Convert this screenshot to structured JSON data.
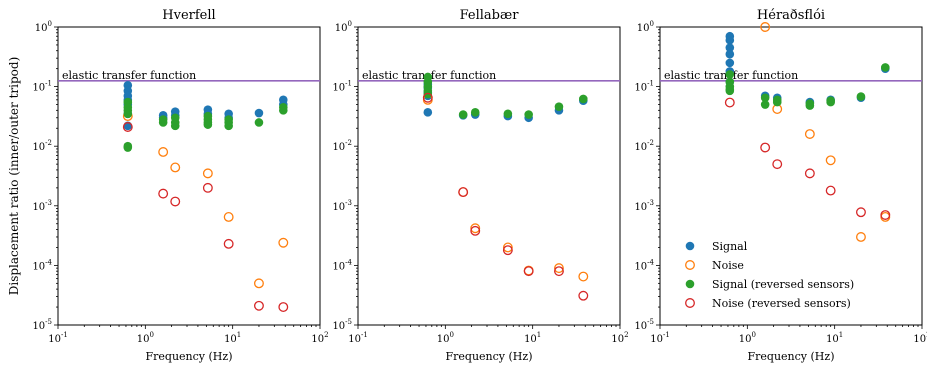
{
  "figure": {
    "ylabel": "Displacement ratio (inner/outer tripod)",
    "xlabel": "Frequency (Hz)"
  },
  "colors": {
    "signal": "#1f77b4",
    "noise": "#ff7f0e",
    "signal_reversed": "#2ca02c",
    "noise_reversed": "#d62728",
    "transfer_line": "#9467bd"
  },
  "chart_data": [
    {
      "type": "scatter",
      "title": "Hverfell",
      "xlabel": "Frequency (Hz)",
      "ylabel": "Displacement ratio (inner/outer tripod)",
      "xscale": "log",
      "yscale": "log",
      "xlim": [
        0.1,
        100
      ],
      "ylim": [
        1e-05,
        1
      ],
      "x_ticks": [
        "10^-1",
        "10^0",
        "10^1",
        "10^2"
      ],
      "y_ticks": [
        "10^-5",
        "10^-4",
        "10^-3",
        "10^-2",
        "10^-1",
        "10^0"
      ],
      "grid": false,
      "line": {
        "label": "elastic transfer function",
        "y": 0.125,
        "x": [
          0.1,
          100
        ]
      },
      "series": [
        {
          "name": "Signal",
          "marker": "filled",
          "x": [
            0.63,
            0.63,
            0.63,
            0.63,
            0.63,
            0.63,
            0.63,
            1.6,
            1.6,
            2.2,
            2.2,
            5.2,
            5.2,
            9.0,
            9.0,
            20,
            38,
            38
          ],
          "y": [
            0.105,
            0.085,
            0.07,
            0.06,
            0.05,
            0.035,
            0.022,
            0.033,
            0.03,
            0.038,
            0.033,
            0.041,
            0.035,
            0.035,
            0.03,
            0.036,
            0.06,
            0.05
          ]
        },
        {
          "name": "Noise",
          "marker": "open",
          "x": [
            0.63,
            1.6,
            2.2,
            5.2,
            9.0,
            20,
            38
          ],
          "y": [
            0.032,
            0.008,
            0.0044,
            0.0035,
            0.00065,
            5e-05,
            0.00024
          ]
        },
        {
          "name": "Signal (reversed sensors)",
          "marker": "filled",
          "x": [
            0.63,
            0.63,
            0.63,
            0.63,
            0.63,
            0.63,
            1.6,
            1.6,
            2.2,
            2.2,
            2.2,
            5.2,
            5.2,
            5.2,
            5.2,
            9.0,
            9.0,
            9.0,
            20,
            38,
            38
          ],
          "y": [
            0.055,
            0.045,
            0.04,
            0.035,
            0.01,
            0.0095,
            0.028,
            0.025,
            0.03,
            0.025,
            0.022,
            0.032,
            0.028,
            0.025,
            0.023,
            0.028,
            0.025,
            0.022,
            0.025,
            0.045,
            0.04
          ]
        },
        {
          "name": "Noise (reversed sensors)",
          "marker": "open",
          "x": [
            0.63,
            1.6,
            2.2,
            5.2,
            9.0,
            20,
            38
          ],
          "y": [
            0.021,
            0.0016,
            0.00118,
            0.002,
            0.00023,
            2.1e-05,
            2e-05
          ]
        }
      ]
    },
    {
      "type": "scatter",
      "title": "Fellabær",
      "xlabel": "Frequency (Hz)",
      "xscale": "log",
      "yscale": "log",
      "xlim": [
        0.1,
        100
      ],
      "ylim": [
        1e-05,
        1
      ],
      "x_ticks": [
        "10^-1",
        "10^0",
        "10^1",
        "10^2"
      ],
      "y_ticks": [
        "10^-5",
        "10^-4",
        "10^-3",
        "10^-2",
        "10^-1",
        "10^0"
      ],
      "grid": false,
      "line": {
        "label": "elastic transfer function",
        "y": 0.125,
        "x": [
          0.1,
          100
        ]
      },
      "series": [
        {
          "name": "Signal",
          "marker": "filled",
          "x": [
            0.63,
            0.63,
            0.63,
            0.63,
            0.63,
            1.6,
            2.2,
            5.2,
            9.0,
            20,
            38
          ],
          "y": [
            0.11,
            0.095,
            0.08,
            0.07,
            0.037,
            0.033,
            0.034,
            0.032,
            0.03,
            0.04,
            0.058
          ]
        },
        {
          "name": "Noise",
          "marker": "open",
          "x": [
            0.63,
            1.6,
            2.2,
            5.2,
            9.0,
            20,
            38
          ],
          "y": [
            0.06,
            0.0017,
            0.00042,
            0.0002,
            8.2e-05,
            9e-05,
            6.5e-05
          ]
        },
        {
          "name": "Signal (reversed sensors)",
          "marker": "filled",
          "x": [
            0.63,
            0.63,
            0.63,
            0.63,
            0.63,
            1.6,
            2.2,
            5.2,
            9.0,
            20,
            38
          ],
          "y": [
            0.145,
            0.12,
            0.1,
            0.085,
            0.075,
            0.034,
            0.037,
            0.035,
            0.034,
            0.046,
            0.062
          ]
        },
        {
          "name": "Noise (reversed sensors)",
          "marker": "open",
          "x": [
            0.63,
            1.6,
            2.2,
            5.2,
            9.0,
            20,
            38
          ],
          "y": [
            0.065,
            0.0017,
            0.00038,
            0.00018,
            8e-05,
            8e-05,
            3.1e-05
          ]
        }
      ]
    },
    {
      "type": "scatter",
      "title": "Héraðsflói",
      "xlabel": "Frequency (Hz)",
      "xscale": "log",
      "yscale": "log",
      "xlim": [
        0.1,
        100
      ],
      "ylim": [
        1e-05,
        1
      ],
      "x_ticks": [
        "10^-1",
        "10^0",
        "10^1",
        "10^2"
      ],
      "y_ticks": [
        "10^-5",
        "10^-4",
        "10^-3",
        "10^-2",
        "10^-1",
        "10^0"
      ],
      "grid": false,
      "line": {
        "label": "elastic transfer function",
        "y": 0.125,
        "x": [
          0.1,
          100
        ]
      },
      "legend": {
        "location": "lower-left",
        "entries": [
          "Signal",
          "Noise",
          "Signal (reversed sensors)",
          "Noise (reversed sensors)"
        ]
      },
      "series": [
        {
          "name": "Signal",
          "marker": "filled",
          "x": [
            0.63,
            0.63,
            0.63,
            0.63,
            0.63,
            0.63,
            0.63,
            1.6,
            2.2,
            5.2,
            9.0,
            20,
            38
          ],
          "y": [
            0.7,
            0.6,
            0.45,
            0.35,
            0.25,
            0.18,
            0.12,
            0.07,
            0.065,
            0.055,
            0.06,
            0.065,
            0.2
          ]
        },
        {
          "name": "Noise",
          "marker": "open",
          "x": [
            1.6,
            2.2,
            5.2,
            9.0,
            20,
            38
          ],
          "y": [
            1.0,
            0.042,
            0.016,
            0.0058,
            0.0003,
            0.00065
          ]
        },
        {
          "name": "Signal (reversed sensors)",
          "marker": "filled",
          "x": [
            0.63,
            0.63,
            0.63,
            0.63,
            0.63,
            1.6,
            1.6,
            2.2,
            2.2,
            5.2,
            5.2,
            9.0,
            9.0,
            20,
            38
          ],
          "y": [
            0.16,
            0.12,
            0.1,
            0.09,
            0.085,
            0.065,
            0.05,
            0.06,
            0.055,
            0.052,
            0.048,
            0.058,
            0.055,
            0.068,
            0.21
          ]
        },
        {
          "name": "Noise (reversed sensors)",
          "marker": "open",
          "x": [
            0.63,
            1.6,
            2.2,
            5.2,
            9.0,
            20,
            38
          ],
          "y": [
            0.054,
            0.0095,
            0.005,
            0.0035,
            0.0018,
            0.00078,
            0.0007
          ]
        }
      ]
    }
  ]
}
